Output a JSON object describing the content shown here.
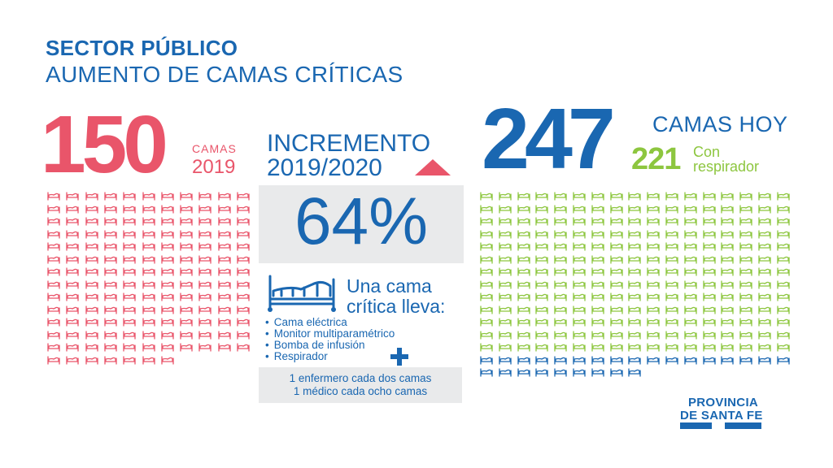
{
  "title": "SECTOR PÚBLICO",
  "subtitle": "AUMENTO DE CAMAS CRÍTICAS",
  "left": {
    "count": "150",
    "camas_label": "CAMAS",
    "year": "2019",
    "beds_shown": 150
  },
  "middle": {
    "increment_label": "INCREMENTO",
    "increment_years": "2019/2020",
    "percentage": "64%",
    "bed_caption_line1": "Una cama",
    "bed_caption_line2": "crítica lleva:",
    "items": [
      "Cama eléctrica",
      "Monitor multiparamétrico",
      "Bomba de infusión",
      "Respirador"
    ],
    "staff_line1": "1 enfermero cada dos camas",
    "staff_line2": "1 médico cada ocho camas"
  },
  "right": {
    "count": "247",
    "camas_hoy": "CAMAS HOY",
    "respirator_count": "221",
    "respirator_line1": "Con",
    "respirator_line2": "respirador",
    "beds_with_respirator": 221,
    "beds_total": 247
  },
  "logo": {
    "line1": "PROVINCIA",
    "line2": "DE SANTA FE"
  },
  "colors": {
    "blue": "#1a67b1",
    "red": "#e9556a",
    "green": "#8dc63f",
    "panel": "#e9eaeb"
  },
  "icons": [
    "bed-icon",
    "plus-icon",
    "triangle-up-icon"
  ]
}
